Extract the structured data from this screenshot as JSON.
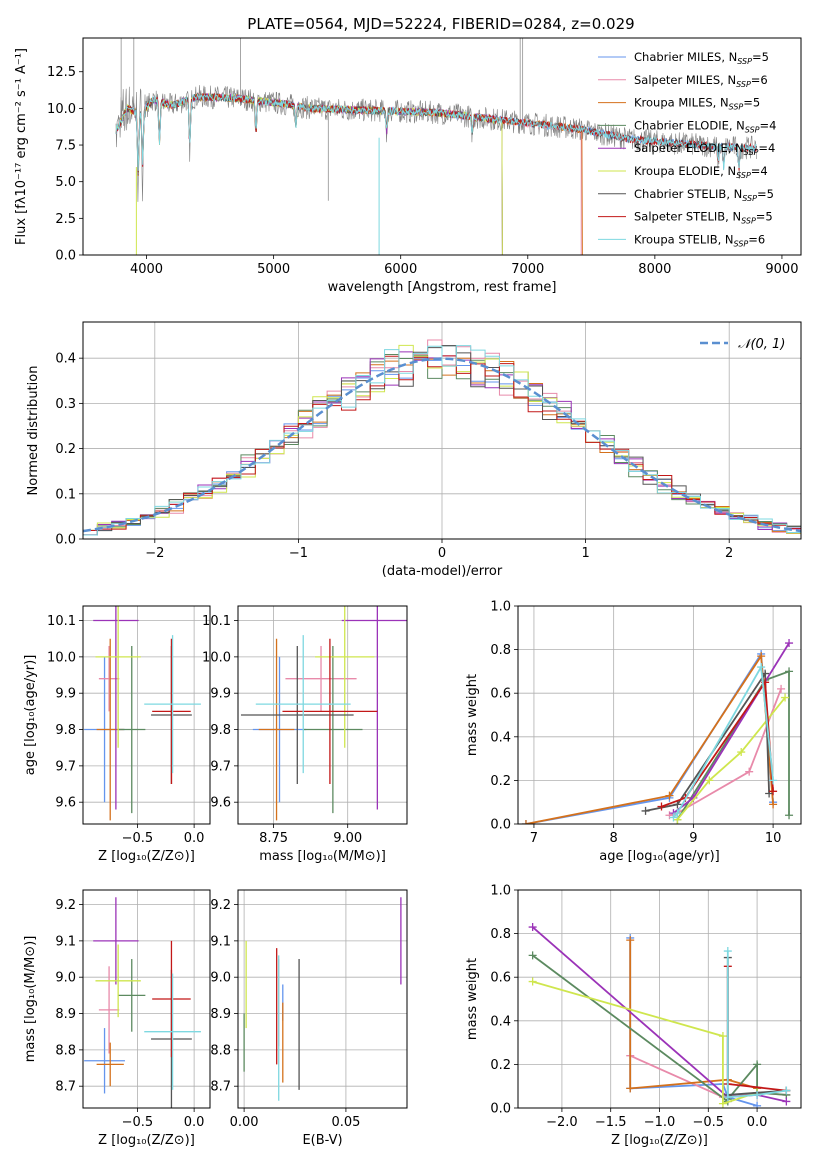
{
  "title": "PLATE=0564, MJD=52224, FIBERID=0284, z=0.029",
  "colors": {
    "s1": "#6495ed",
    "s2": "#e88aaa",
    "s3": "#d4711c",
    "s4": "#5c8a60",
    "s5": "#9b33b8",
    "s6": "#cfe64e",
    "s7": "#555555",
    "s8": "#c21818",
    "s9": "#7ed8e0",
    "grid": "#b0b0b0",
    "normal": "#5a8fd0",
    "spec": "#808080"
  },
  "chart_data": [
    {
      "type": "line",
      "name": "spectrum",
      "xlabel": "wavelength [Angstrom, rest frame]",
      "ylabel": "Flux [fλ10⁻¹⁷ erg cm⁻² s⁻¹ A⁻¹]",
      "xlim": [
        3500,
        9150
      ],
      "ylim": [
        0,
        14.8
      ],
      "xticks": [
        4000,
        5000,
        6000,
        7000,
        8000,
        9000
      ],
      "yticks": [
        0.0,
        2.5,
        5.0,
        7.5,
        10.0,
        12.5
      ],
      "grid": false,
      "legend_position": "top-right",
      "legend": [
        {
          "prefix": "Chabrier MILES, N",
          "sub": "SSP",
          "suffix": "=5",
          "color_key": "s1"
        },
        {
          "prefix": "Salpeter MILES, N",
          "sub": "SSP",
          "suffix": "=6",
          "color_key": "s2"
        },
        {
          "prefix": "Kroupa MILES, N",
          "sub": "SSP",
          "suffix": "=5",
          "color_key": "s3"
        },
        {
          "prefix": "Chabrier ELODIE, N",
          "sub": "SSP",
          "suffix": "=4",
          "color_key": "s4"
        },
        {
          "prefix": "Salpeter ELODIE, N",
          "sub": "SSP",
          "suffix": "=4",
          "color_key": "s5"
        },
        {
          "prefix": "Kroupa ELODIE, N",
          "sub": "SSP",
          "suffix": "=4",
          "color_key": "s6"
        },
        {
          "prefix": "Chabrier STELIB, N",
          "sub": "SSP",
          "suffix": "=5",
          "color_key": "s7"
        },
        {
          "prefix": "Salpeter STELIB, N",
          "sub": "SSP",
          "suffix": "=5",
          "color_key": "s8"
        },
        {
          "prefix": "Kroupa STELIB, N",
          "sub": "SSP",
          "suffix": "=6",
          "color_key": "s9"
        }
      ],
      "continuum": [
        [
          3760,
          8.5
        ],
        [
          3850,
          10.0
        ],
        [
          3950,
          9.6
        ],
        [
          4050,
          10.6
        ],
        [
          4200,
          10.2
        ],
        [
          4400,
          10.8
        ],
        [
          4700,
          10.7
        ],
        [
          5000,
          10.4
        ],
        [
          5300,
          10.0
        ],
        [
          5600,
          9.9
        ],
        [
          6000,
          9.8
        ],
        [
          6300,
          9.7
        ],
        [
          6600,
          9.4
        ],
        [
          7000,
          9.0
        ],
        [
          7400,
          8.6
        ],
        [
          7800,
          7.9
        ],
        [
          8200,
          7.6
        ],
        [
          8500,
          7.4
        ],
        [
          8800,
          7.3
        ]
      ],
      "model_ranges": [
        {
          "color_key": "s1",
          "x": [
            3760,
            8800
          ]
        },
        {
          "color_key": "s2",
          "x": [
            3760,
            7420
          ]
        },
        {
          "color_key": "s3",
          "x": [
            3760,
            7430
          ]
        },
        {
          "color_key": "s4",
          "x": [
            3760,
            6800
          ]
        },
        {
          "color_key": "s5",
          "x": [
            3760,
            6800
          ]
        },
        {
          "color_key": "s6",
          "x": [
            3760,
            6800
          ]
        },
        {
          "color_key": "s7",
          "x": [
            3760,
            8800
          ]
        },
        {
          "color_key": "s8",
          "x": [
            3760,
            8800
          ]
        },
        {
          "color_key": "s9",
          "x": [
            3760,
            8800
          ]
        }
      ]
    },
    {
      "type": "line",
      "name": "residuals",
      "xlabel": "(data-model)/error",
      "ylabel": "Normed distribution",
      "xlim": [
        -2.5,
        2.5
      ],
      "ylim": [
        0,
        0.48
      ],
      "xticks": [
        -2,
        -1,
        0,
        1,
        2
      ],
      "xtick_labels": [
        "−2",
        "−1",
        "0",
        "1",
        "2"
      ],
      "yticks": [
        0.0,
        0.1,
        0.2,
        0.3,
        0.4
      ],
      "grid": true,
      "legend": [
        {
          "label": "𝒩(0, 1)",
          "color_key": "normal",
          "dashed": true
        }
      ],
      "legend_position": "top-right",
      "bin_width": 0.1,
      "n_histograms": 9
    },
    {
      "type": "scatter",
      "name": "age-vs-Z",
      "xlabel": "Z [log₁₀(Z/Z⊙)]",
      "ylabel": "age  [log₁₀(age/yr)]",
      "xlim": [
        -0.98,
        0.14
      ],
      "ylim": [
        9.54,
        10.14
      ],
      "xticks": [
        -0.5,
        0.0
      ],
      "xtick_labels": [
        "−0.5",
        "0.0"
      ],
      "yticks": [
        9.6,
        9.7,
        9.8,
        9.9,
        10.0,
        10.1
      ],
      "grid": true,
      "points": [
        {
          "color_key": "s1",
          "x": -0.79,
          "xerr": 0.18,
          "y": 9.8,
          "yerr": 0.2
        },
        {
          "color_key": "s2",
          "x": -0.75,
          "xerr": 0.09,
          "y": 9.94,
          "yerr": 0.09
        },
        {
          "color_key": "s3",
          "x": -0.74,
          "xerr": 0.12,
          "y": 9.8,
          "yerr": 0.25
        },
        {
          "color_key": "s4",
          "x": -0.55,
          "xerr": 0.12,
          "y": 9.8,
          "yerr": 0.23
        },
        {
          "color_key": "s5",
          "x": -0.69,
          "xerr": 0.2,
          "y": 10.1,
          "yerr": 0.52
        },
        {
          "color_key": "s6",
          "x": -0.67,
          "xerr": 0.2,
          "y": 10.0,
          "yerr": 0.25
        },
        {
          "color_key": "s7",
          "x": -0.2,
          "xerr": 0.18,
          "y": 9.84,
          "yerr": 0.19
        },
        {
          "color_key": "s8",
          "x": -0.2,
          "xerr": 0.17,
          "y": 9.85,
          "yerr": 0.2
        },
        {
          "color_key": "s9",
          "x": -0.19,
          "xerr": 0.25,
          "y": 9.87,
          "yerr": 0.19
        }
      ]
    },
    {
      "type": "scatter",
      "name": "age-vs-mass",
      "xlabel": "mass [log₁₀(M/M⊙)]",
      "ylabel": "",
      "xlim": [
        8.63,
        9.2
      ],
      "ylim": [
        9.54,
        10.14
      ],
      "xticks": [
        8.75,
        9.0
      ],
      "xtick_labels": [
        "8.75",
        "9.00"
      ],
      "yticks": [
        9.6,
        9.7,
        9.8,
        9.9,
        10.0,
        10.1
      ],
      "grid": true,
      "points": [
        {
          "color_key": "s1",
          "x": 8.77,
          "xerr": 0.09,
          "y": 9.8,
          "yerr": 0.2
        },
        {
          "color_key": "s2",
          "x": 8.91,
          "xerr": 0.12,
          "y": 9.94,
          "yerr": 0.09
        },
        {
          "color_key": "s3",
          "x": 8.76,
          "xerr": 0.06,
          "y": 9.8,
          "yerr": 0.25
        },
        {
          "color_key": "s4",
          "x": 8.95,
          "xerr": 0.1,
          "y": 9.8,
          "yerr": 0.23
        },
        {
          "color_key": "s5",
          "x": 9.1,
          "xerr": 0.12,
          "y": 10.1,
          "yerr": 0.52
        },
        {
          "color_key": "s6",
          "x": 8.99,
          "xerr": 0.1,
          "y": 10.0,
          "yerr": 0.25
        },
        {
          "color_key": "s7",
          "x": 8.83,
          "xerr": 0.19,
          "y": 9.84,
          "yerr": 0.19
        },
        {
          "color_key": "s8",
          "x": 8.94,
          "xerr": 0.16,
          "y": 9.85,
          "yerr": 0.2
        },
        {
          "color_key": "s9",
          "x": 8.85,
          "xerr": 0.16,
          "y": 9.87,
          "yerr": 0.19
        }
      ]
    },
    {
      "type": "line",
      "name": "mass-weight-vs-age",
      "xlabel": "age  [log₁₀(age/yr)]",
      "ylabel": "mass weight",
      "xlim": [
        6.8,
        10.35
      ],
      "ylim": [
        0,
        1.0
      ],
      "xticks": [
        7,
        8,
        9,
        10
      ],
      "yticks": [
        0.0,
        0.2,
        0.4,
        0.6,
        0.8,
        1.0
      ],
      "grid": true,
      "series": [
        {
          "color_key": "s1",
          "x": [
            6.9,
            8.7,
            9.85,
            10.0
          ],
          "y": [
            0.0,
            0.12,
            0.78,
            0.1
          ]
        },
        {
          "color_key": "s2",
          "x": [
            8.7,
            8.8,
            9.7,
            10.1
          ],
          "y": [
            0.04,
            0.05,
            0.24,
            0.62
          ]
        },
        {
          "color_key": "s3",
          "x": [
            6.9,
            8.7,
            9.85,
            10.0
          ],
          "y": [
            0.0,
            0.13,
            0.77,
            0.09
          ]
        },
        {
          "color_key": "s4",
          "x": [
            8.8,
            9.9,
            10.2,
            10.2
          ],
          "y": [
            0.02,
            0.66,
            0.7,
            0.04
          ]
        },
        {
          "color_key": "s5",
          "x": [
            8.75,
            9.0,
            10.2
          ],
          "y": [
            0.05,
            0.12,
            0.83
          ]
        },
        {
          "color_key": "s6",
          "x": [
            8.8,
            9.2,
            9.6,
            10.15
          ],
          "y": [
            0.02,
            0.2,
            0.33,
            0.58
          ]
        },
        {
          "color_key": "s7",
          "x": [
            8.4,
            8.8,
            9.9,
            9.95
          ],
          "y": [
            0.06,
            0.09,
            0.69,
            0.14
          ]
        },
        {
          "color_key": "s8",
          "x": [
            8.6,
            8.9,
            9.9,
            10.0
          ],
          "y": [
            0.08,
            0.12,
            0.65,
            0.15
          ]
        },
        {
          "color_key": "s9",
          "x": [
            8.75,
            8.8,
            9.85,
            10.0
          ],
          "y": [
            0.03,
            0.05,
            0.72,
            0.2
          ]
        }
      ]
    },
    {
      "type": "scatter",
      "name": "mass-vs-Z",
      "xlabel": "Z [log₁₀(Z/Z⊙)]",
      "ylabel": "mass [log₁₀(M/M⊙)]",
      "xlim": [
        -0.98,
        0.14
      ],
      "ylim": [
        8.64,
        9.24
      ],
      "xticks": [
        -0.5,
        0.0
      ],
      "xtick_labels": [
        "−0.5",
        "0.0"
      ],
      "yticks": [
        8.7,
        8.8,
        8.9,
        9.0,
        9.1,
        9.2
      ],
      "grid": true,
      "points": [
        {
          "color_key": "s1",
          "x": -0.79,
          "xerr": 0.18,
          "y": 8.77,
          "yerr": 0.09
        },
        {
          "color_key": "s2",
          "x": -0.75,
          "xerr": 0.09,
          "y": 8.91,
          "yerr": 0.12
        },
        {
          "color_key": "s3",
          "x": -0.74,
          "xerr": 0.12,
          "y": 8.76,
          "yerr": 0.06
        },
        {
          "color_key": "s4",
          "x": -0.55,
          "xerr": 0.12,
          "y": 8.95,
          "yerr": 0.1
        },
        {
          "color_key": "s5",
          "x": -0.69,
          "xerr": 0.2,
          "y": 9.1,
          "yerr": 0.12
        },
        {
          "color_key": "s6",
          "x": -0.67,
          "xerr": 0.2,
          "y": 8.99,
          "yerr": 0.1
        },
        {
          "color_key": "s7",
          "x": -0.2,
          "xerr": 0.18,
          "y": 8.83,
          "yerr": 0.19
        },
        {
          "color_key": "s8",
          "x": -0.2,
          "xerr": 0.17,
          "y": 8.94,
          "yerr": 0.16
        },
        {
          "color_key": "s9",
          "x": -0.19,
          "xerr": 0.25,
          "y": 8.85,
          "yerr": 0.16
        }
      ]
    },
    {
      "type": "scatter",
      "name": "mass-vs-ebv",
      "xlabel": "E(B-V)",
      "ylabel": "",
      "xlim": [
        -0.003,
        0.08
      ],
      "ylim": [
        8.64,
        9.24
      ],
      "xticks": [
        0.0,
        0.05
      ],
      "xtick_labels": [
        "0.00",
        "0.05"
      ],
      "yticks": [
        8.7,
        8.8,
        8.9,
        9.0,
        9.1,
        9.2
      ],
      "grid": true,
      "points": [
        {
          "color_key": "s1",
          "x": 0.019,
          "y": 8.93,
          "yerr": 0.05
        },
        {
          "color_key": "s2",
          "x": 0.017,
          "y": 8.93,
          "yerr": 0.12
        },
        {
          "color_key": "s3",
          "x": 0.019,
          "y": 8.82,
          "yerr": 0.11
        },
        {
          "color_key": "s4",
          "x": 0.0,
          "y": 8.82,
          "yerr": 0.08
        },
        {
          "color_key": "s5",
          "x": 0.077,
          "y": 9.1,
          "yerr": 0.12
        },
        {
          "color_key": "s6",
          "x": 0.001,
          "y": 8.98,
          "yerr": 0.12
        },
        {
          "color_key": "s7",
          "x": 0.027,
          "y": 8.87,
          "yerr": 0.18
        },
        {
          "color_key": "s8",
          "x": 0.016,
          "y": 8.92,
          "yerr": 0.16
        },
        {
          "color_key": "s9",
          "x": 0.017,
          "y": 8.86,
          "yerr": 0.2
        }
      ]
    },
    {
      "type": "line",
      "name": "mass-weight-vs-Z",
      "xlabel": "Z [log₁₀(Z/Z⊙)]",
      "ylabel": "mass weight",
      "xlim": [
        -2.45,
        0.45
      ],
      "ylim": [
        0,
        1.0
      ],
      "xticks": [
        -2.0,
        -1.5,
        -1.0,
        -0.5,
        0.0
      ],
      "xtick_labels": [
        "−2.0",
        "−1.5",
        "−1.0",
        "−0.5",
        "0.0"
      ],
      "yticks": [
        0.0,
        0.2,
        0.4,
        0.6,
        0.8,
        1.0
      ],
      "grid": true,
      "series": [
        {
          "color_key": "s1",
          "x": [
            -1.3,
            -1.3,
            -0.35,
            -0.3,
            0.0
          ],
          "y": [
            0.78,
            0.09,
            0.11,
            0.05,
            0.01
          ]
        },
        {
          "color_key": "s2",
          "x": [
            -1.3,
            -0.35,
            0.0,
            0.3
          ],
          "y": [
            0.24,
            0.05,
            0.07,
            0.06
          ]
        },
        {
          "color_key": "s3",
          "x": [
            -1.3,
            -1.3,
            -0.3,
            0.0
          ],
          "y": [
            0.77,
            0.09,
            0.13,
            0.09
          ]
        },
        {
          "color_key": "s4",
          "x": [
            -2.3,
            -0.3,
            -0.3,
            0.0,
            0.0,
            0.3
          ],
          "y": [
            0.7,
            0.03,
            0.04,
            0.2,
            0.07,
            0.06
          ]
        },
        {
          "color_key": "s5",
          "x": [
            -2.3,
            -0.3,
            0.0,
            0.3
          ],
          "y": [
            0.83,
            0.05,
            0.06,
            0.03
          ]
        },
        {
          "color_key": "s6",
          "x": [
            -2.3,
            -0.35,
            -0.35,
            0.0
          ],
          "y": [
            0.58,
            0.33,
            0.02,
            0.07
          ]
        },
        {
          "color_key": "s7",
          "x": [
            -0.3,
            -0.3,
            0.3
          ],
          "y": [
            0.69,
            0.06,
            0.08
          ]
        },
        {
          "color_key": "s8",
          "x": [
            -0.3,
            -0.3,
            0.3
          ],
          "y": [
            0.65,
            0.11,
            0.08
          ]
        },
        {
          "color_key": "s9",
          "x": [
            -0.3,
            -0.3,
            0.0,
            0.3
          ],
          "y": [
            0.72,
            0.05,
            0.06,
            0.08
          ]
        }
      ]
    }
  ]
}
